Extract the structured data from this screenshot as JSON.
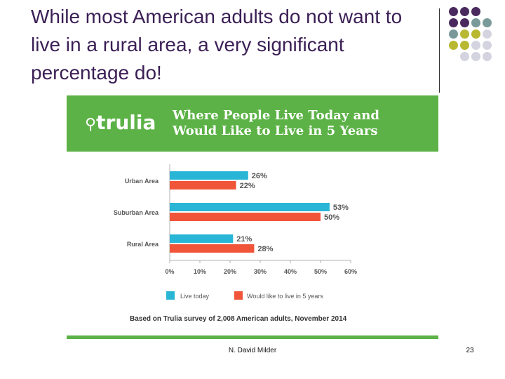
{
  "slide": {
    "title": "While most American adults do not want to live in a rural area, a very significant percentage do!",
    "author": "N. David Milder",
    "page_number": "23"
  },
  "banner": {
    "logo_text": "trulia",
    "title_line1": "Where People Live Today and",
    "title_line2": "Would Like to Live in 5 Years",
    "color": "#5cb246"
  },
  "chart_data": {
    "type": "bar",
    "orientation": "horizontal",
    "categories": [
      "Urban Area",
      "Suburban Area",
      "Rural Area"
    ],
    "series": [
      {
        "name": "Live today",
        "values": [
          26,
          53,
          21
        ],
        "color": "#29b6d6"
      },
      {
        "name": "Would like to live in 5 years",
        "values": [
          22,
          50,
          28
        ],
        "color": "#f0553a"
      }
    ],
    "xlim": [
      0,
      60
    ],
    "xticks": [
      "0%",
      "10%",
      "20%",
      "30%",
      "40%",
      "50%",
      "60%"
    ],
    "value_labels": [
      [
        "26%",
        "22%"
      ],
      [
        "53%",
        "50%"
      ],
      [
        "21%",
        "28%"
      ]
    ],
    "legend_position": "bottom",
    "source_note": "Based on Trulia survey of 2,008 American adults, November 2014"
  },
  "decor": {
    "dot_colors": [
      "#4a2a5e",
      "#7a9a9a",
      "#b8b832",
      "#d4d4e0"
    ]
  }
}
